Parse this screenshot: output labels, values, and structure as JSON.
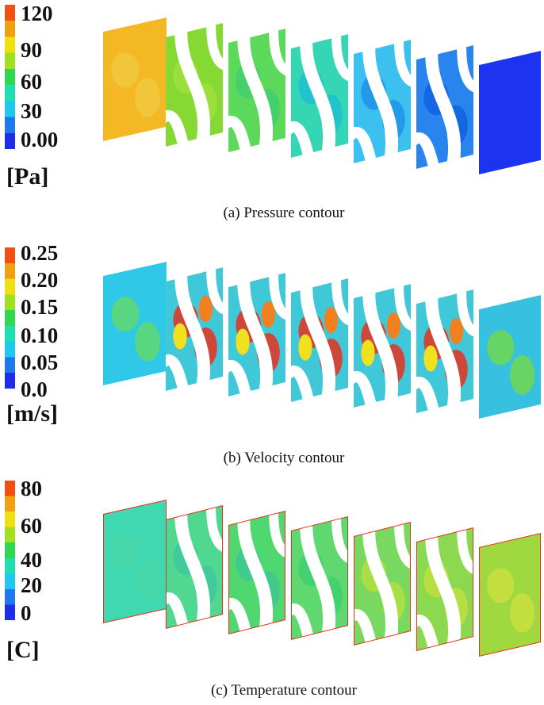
{
  "panels": [
    {
      "id": "pressure",
      "ticks": [
        "120",
        "90",
        "60",
        "30",
        "0.00"
      ],
      "unit": "[Pa]",
      "caption": "(a)  Pressure contour",
      "slice_colors": [
        "#f4b824",
        "#86d832",
        "#5cd85a",
        "#34d6b4",
        "#3cc0f0",
        "#2a84ee",
        "#1c34f0"
      ],
      "blob_color": [
        "#f0c840",
        "#a0e040",
        "#40d070",
        "#20c0d0",
        "#2090e8",
        "#1060e0",
        "#1c34f0"
      ]
    },
    {
      "id": "velocity",
      "ticks": [
        "0.25",
        "0.20",
        "0.15",
        "0.10",
        "0.05",
        "0.0"
      ],
      "unit": "[m/s]",
      "caption": "(b)  Velocity contour",
      "slice_colors": [
        "#30c8e8",
        "#40c8d8",
        "#40c8d8",
        "#40c8d8",
        "#40c8d8",
        "#40c8d8",
        "#38c0e0"
      ],
      "blob_color": [
        "#60d870",
        "#e83020",
        "#e83020",
        "#e83020",
        "#e83020",
        "#e83020",
        "#70d850"
      ]
    },
    {
      "id": "temperature",
      "ticks": [
        "80",
        "60",
        "40",
        "20",
        "0"
      ],
      "unit": "[C]",
      "caption": "(c)  Temperature contour",
      "slice_colors": [
        "#40d8b0",
        "#50d890",
        "#50d870",
        "#60d870",
        "#78d860",
        "#8cd850",
        "#a0d840"
      ],
      "blob_color": [
        "#48d8a8",
        "#40c8a0",
        "#40c890",
        "#40d070",
        "#b0e040",
        "#c0e040",
        "#c8e040"
      ]
    }
  ],
  "colormap": [
    "#1e2ee8",
    "#1e78f0",
    "#1ec8f0",
    "#1ee0b0",
    "#30d850",
    "#a0e020",
    "#f0e010",
    "#f0a010",
    "#f05010"
  ]
}
